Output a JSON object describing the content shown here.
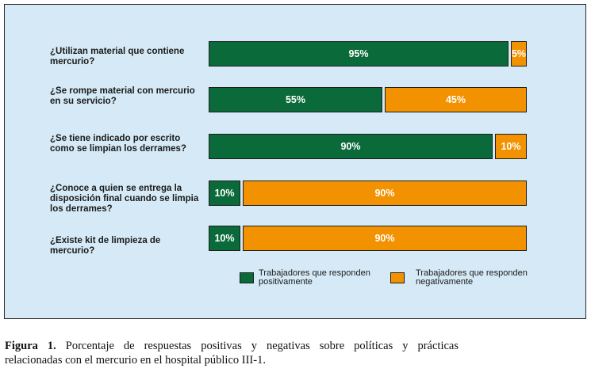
{
  "chart_data": {
    "type": "bar",
    "stacked": true,
    "orientation": "horizontal",
    "categories": [
      [
        "¿Utilizan material que contiene",
        "mercurio?"
      ],
      [
        "¿Se rompe material con mercurio",
        "en su servicio?"
      ],
      [
        "¿Se tiene indicado por escrito",
        "como se limpian los derrames?"
      ],
      [
        "¿Conoce a quien se entrega la",
        "disposición final cuando se limpia",
        "los derrames?"
      ],
      [
        "¿Existe kit de limpieza de",
        "mercurio?"
      ]
    ],
    "series": [
      {
        "name": "Trabajadores que responden positivamente",
        "values": [
          95,
          55,
          90,
          10,
          10
        ],
        "color": "#0a6a3a"
      },
      {
        "name": "Trabajadores que responden negativamente",
        "values": [
          5,
          45,
          10,
          90,
          90
        ],
        "color": "#f39200"
      }
    ],
    "value_format": "{v}%",
    "legend": {
      "placement": "bottom-right",
      "items": [
        {
          "lines": [
            "Trabajadores que responden",
            "positivamente"
          ],
          "color": "#0a6a3a"
        },
        {
          "lines": [
            "Trabajadores que responden",
            "negativamente"
          ],
          "color": "#f39200"
        }
      ]
    }
  },
  "caption": {
    "label": "Figura 1.",
    "line1": "Porcentaje de respuestas positivas y negativas sobre políticas y prácticas",
    "line2": "relacionadas con el mercurio en el hospital público III-1."
  },
  "colors": {
    "panel_background": "#d5eaf6",
    "positive": "#0a6a3a",
    "negative": "#f39200"
  }
}
